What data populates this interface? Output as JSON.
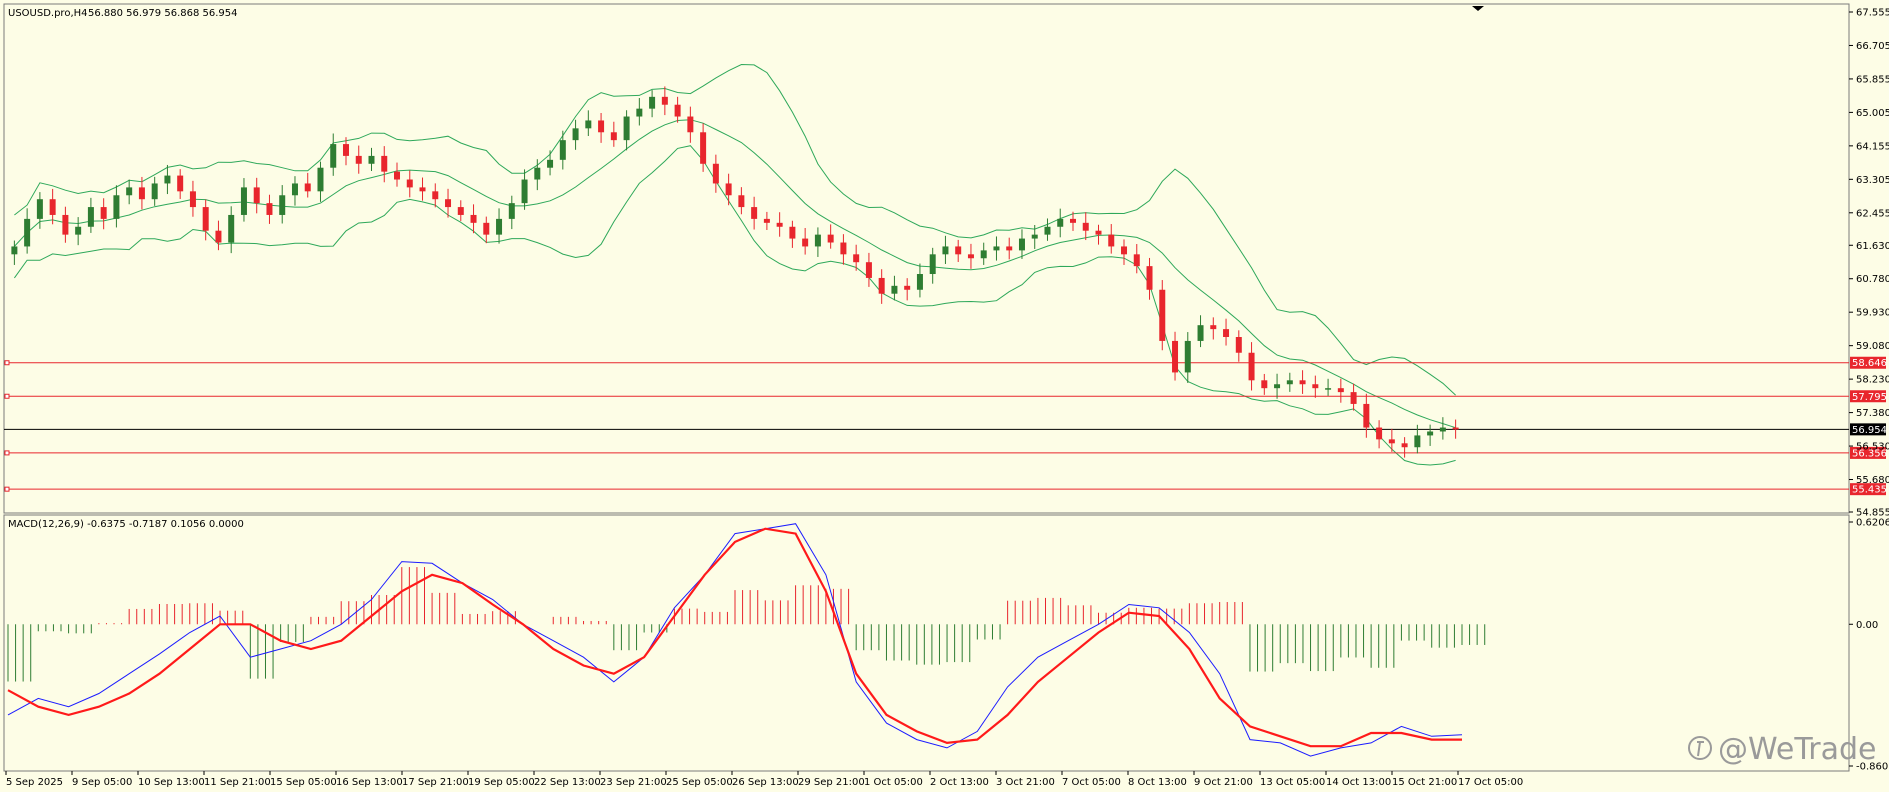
{
  "header": {
    "symbol": "USOUSD.pro,H4",
    "ohlc": "56.880 56.979 56.868 56.954"
  },
  "macd_label": "MACD(12,26,9) -0.6375 -0.7187 0.1056 0.0000",
  "watermark": "@WeTrade",
  "colors": {
    "background": "#fdfde6",
    "bull_candle": "#2e7d32",
    "bear_candle": "#e8262d",
    "bollinger": "#2ea85a",
    "level_line": "#e8262d",
    "macd_line": "#1c1cff",
    "signal_line": "#ff1a1a"
  },
  "chart_data": [
    {
      "type": "candlestick",
      "title": "USOUSD.pro,H4",
      "price_axis_ticks": [
        "67.555",
        "66.705",
        "65.855",
        "65.005",
        "64.155",
        "63.305",
        "62.455",
        "61.630",
        "60.780",
        "59.930",
        "59.080",
        "58.230",
        "57.380",
        "56.530",
        "55.680",
        "54.855"
      ],
      "price_range": [
        54.855,
        67.555
      ],
      "time_axis_labels": [
        "5 Sep 2025",
        "9 Sep 05:00",
        "10 Sep 13:00",
        "11 Sep 21:00",
        "15 Sep 05:00",
        "16 Sep 13:00",
        "17 Sep 21:00",
        "19 Sep 05:00",
        "22 Sep 13:00",
        "23 Sep 21:00",
        "25 Sep 05:00",
        "26 Sep 13:00",
        "29 Sep 21:00",
        "1 Oct 05:00",
        "2 Oct 13:00",
        "3 Oct 21:00",
        "7 Oct 05:00",
        "8 Oct 13:00",
        "9 Oct 21:00",
        "13 Oct 05:00",
        "14 Oct 13:00",
        "15 Oct 21:00",
        "17 Oct 05:00"
      ],
      "close_series": [
        61.6,
        62.3,
        62.8,
        62.4,
        61.9,
        62.1,
        62.6,
        62.3,
        62.9,
        63.1,
        62.8,
        63.2,
        63.4,
        63.0,
        62.6,
        62.0,
        61.7,
        62.4,
        63.1,
        62.7,
        62.4,
        62.9,
        63.2,
        63.0,
        63.6,
        64.2,
        63.9,
        63.7,
        63.9,
        63.5,
        63.3,
        63.1,
        63.0,
        62.8,
        62.6,
        62.4,
        62.2,
        61.9,
        62.3,
        62.7,
        63.3,
        63.6,
        63.8,
        64.3,
        64.6,
        64.8,
        64.5,
        64.3,
        64.9,
        65.1,
        65.4,
        65.2,
        64.9,
        64.5,
        63.7,
        63.2,
        62.9,
        62.6,
        62.3,
        62.2,
        62.1,
        61.8,
        61.6,
        61.9,
        61.7,
        61.4,
        61.2,
        60.8,
        60.4,
        60.6,
        60.5,
        60.9,
        61.4,
        61.6,
        61.4,
        61.3,
        61.5,
        61.6,
        61.5,
        61.8,
        61.9,
        62.1,
        62.3,
        62.2,
        62.0,
        61.9,
        61.6,
        61.4,
        61.1,
        60.5,
        59.2,
        58.4,
        59.2,
        59.6,
        59.5,
        59.3,
        58.9,
        58.2,
        58.0,
        58.1,
        58.2,
        58.1,
        58.0,
        58.0,
        57.9,
        57.6,
        57.0,
        56.7,
        56.6,
        56.5,
        56.8,
        56.9,
        57.0,
        56.954
      ],
      "last_price": "56.954",
      "horizontal_levels": [
        "58.646",
        "57.795",
        "56.356",
        "55.435"
      ]
    },
    {
      "type": "line",
      "title": "MACD(12,26,9)",
      "axis_ticks": [
        "0.6206",
        "0.00",
        "-0.8601"
      ],
      "range": [
        -0.8601,
        0.6206
      ],
      "series": [
        {
          "name": "MACD",
          "values": [
            -0.55,
            -0.45,
            -0.5,
            -0.42,
            -0.3,
            -0.18,
            -0.05,
            0.05,
            -0.2,
            -0.15,
            -0.1,
            0.0,
            0.15,
            0.38,
            0.37,
            0.25,
            0.15,
            0.0,
            -0.1,
            -0.2,
            -0.35,
            -0.2,
            0.1,
            0.3,
            0.55,
            0.58,
            0.61,
            0.3,
            -0.35,
            -0.6,
            -0.7,
            -0.75,
            -0.65,
            -0.38,
            -0.2,
            -0.1,
            0.0,
            0.12,
            0.1,
            -0.05,
            -0.3,
            -0.7,
            -0.72,
            -0.8,
            -0.75,
            -0.72,
            -0.62,
            -0.68,
            -0.67
          ]
        },
        {
          "name": "Signal",
          "values": [
            -0.4,
            -0.5,
            -0.55,
            -0.5,
            -0.42,
            -0.3,
            -0.15,
            0.0,
            0.0,
            -0.1,
            -0.15,
            -0.1,
            0.05,
            0.2,
            0.3,
            0.25,
            0.12,
            0.0,
            -0.15,
            -0.25,
            -0.3,
            -0.2,
            0.05,
            0.3,
            0.5,
            0.58,
            0.55,
            0.2,
            -0.3,
            -0.55,
            -0.65,
            -0.72,
            -0.7,
            -0.55,
            -0.35,
            -0.2,
            -0.05,
            0.07,
            0.05,
            -0.15,
            -0.45,
            -0.62,
            -0.68,
            -0.74,
            -0.74,
            -0.66,
            -0.66,
            -0.7,
            -0.7
          ]
        }
      ]
    }
  ]
}
